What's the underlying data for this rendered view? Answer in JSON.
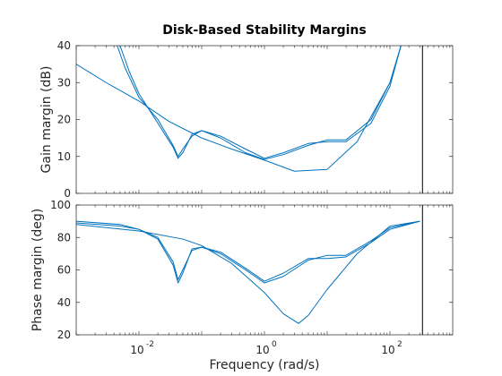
{
  "chart_data": {
    "type": "line",
    "title": "Disk-Based Stability Margins",
    "xlabel": "Frequency (rad/s)",
    "xscale": "log",
    "xlim": [
      0.001,
      1000
    ],
    "x_ticks": [
      {
        "base": "10",
        "exp": "-2",
        "value": 0.01
      },
      {
        "base": "10",
        "exp": "0",
        "value": 1
      },
      {
        "base": "10",
        "exp": "2",
        "value": 100
      }
    ],
    "vertical_line_x": 330,
    "color": "#0072BD",
    "subplots": [
      {
        "name": "gain",
        "ylabel": "Gain margin (dB)",
        "ylim": [
          0,
          40
        ],
        "y_ticks": [
          "0",
          "10",
          "20",
          "30",
          "40"
        ],
        "series": [
          {
            "x": [
              0.001,
              0.003,
              0.01,
              0.03,
              0.1,
              0.3,
              1,
              3,
              10,
              30,
              100,
              150
            ],
            "y": [
              35,
              30,
              25,
              19.5,
              15,
              12,
              9,
              6,
              6.5,
              14,
              30,
              40
            ]
          },
          {
            "x": [
              0.0045,
              0.006,
              0.01,
              0.02,
              0.035,
              0.042,
              0.05,
              0.07,
              0.1,
              0.2,
              0.5,
              1,
              2,
              5,
              10,
              20,
              50,
              100,
              150
            ],
            "y": [
              40,
              34,
              26,
              20,
              13,
              10,
              12,
              15.5,
              17,
              15,
              11,
              9.2,
              10.5,
              13,
              14.5,
              14.5,
              20,
              30,
              40
            ]
          },
          {
            "x": [
              0.005,
              0.007,
              0.01,
              0.02,
              0.035,
              0.042,
              0.05,
              0.07,
              0.1,
              0.2,
              0.5,
              1,
              2,
              5,
              10,
              20,
              50,
              100,
              150
            ],
            "y": [
              40,
              33,
              27,
              19,
              12.5,
              9.5,
              11,
              16,
              17,
              15.5,
              12,
              9.5,
              11,
              13.5,
              14,
              14,
              19,
              29,
              40
            ]
          }
        ]
      },
      {
        "name": "phase",
        "ylabel": "Phase margin (deg)",
        "ylim": [
          20,
          100
        ],
        "y_ticks": [
          "20",
          "40",
          "60",
          "80",
          "100"
        ],
        "series": [
          {
            "x": [
              0.001,
              0.01,
              0.05,
              0.1,
              0.3,
              1,
              2,
              3.5,
              5,
              10,
              30,
              100,
              300
            ],
            "y": [
              88,
              84,
              79,
              75,
              64,
              46,
              33,
              27,
              32,
              48,
              70,
              87,
              90
            ]
          },
          {
            "x": [
              0.001,
              0.005,
              0.01,
              0.02,
              0.035,
              0.042,
              0.05,
              0.07,
              0.1,
              0.2,
              0.5,
              1,
              2,
              5,
              10,
              20,
              50,
              100,
              300
            ],
            "y": [
              89,
              87,
              85,
              80,
              65,
              54,
              60,
              72,
              74,
              70,
              60,
              52,
              56,
              66,
              69,
              69,
              78,
              86,
              90
            ]
          },
          {
            "x": [
              0.001,
              0.005,
              0.01,
              0.02,
              0.035,
              0.042,
              0.05,
              0.07,
              0.1,
              0.2,
              0.5,
              1,
              2,
              5,
              10,
              20,
              50,
              100,
              300
            ],
            "y": [
              90,
              88,
              85,
              79,
              63,
              52,
              58,
              73,
              74,
              71,
              61,
              53,
              58,
              67,
              67,
              68,
              77,
              85,
              90
            ]
          }
        ]
      }
    ]
  }
}
